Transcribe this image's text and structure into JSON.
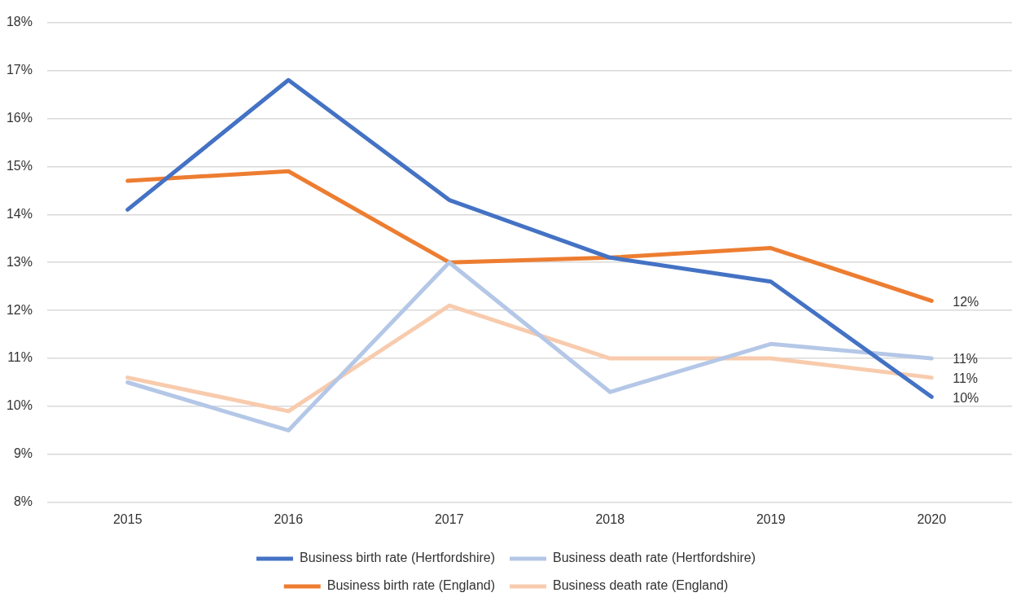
{
  "chart_data": {
    "type": "line",
    "categories": [
      "2015",
      "2016",
      "2017",
      "2018",
      "2019",
      "2020"
    ],
    "ylim": [
      8,
      18
    ],
    "yticks": [
      {
        "value": 8,
        "label": "8%"
      },
      {
        "value": 9,
        "label": "9%"
      },
      {
        "value": 10,
        "label": "10%"
      },
      {
        "value": 11,
        "label": "11%"
      },
      {
        "value": 12,
        "label": "12%"
      },
      {
        "value": 13,
        "label": "13%"
      },
      {
        "value": 14,
        "label": "14%"
      },
      {
        "value": 15,
        "label": "15%"
      },
      {
        "value": 16,
        "label": "16%"
      },
      {
        "value": 17,
        "label": "17%"
      },
      {
        "value": 18,
        "label": "18%"
      }
    ],
    "grid": "y",
    "legend": "bottom",
    "marker": "none",
    "line_style": "solid",
    "series": [
      {
        "name": "Business birth rate (Hertfordshire)",
        "color": "#4472c4",
        "values": [
          14.1,
          16.8,
          14.3,
          13.1,
          12.6,
          10.2
        ],
        "value_labels": [
          null,
          null,
          null,
          null,
          null,
          "10%"
        ]
      },
      {
        "name": "Business death rate (Hertfordshire)",
        "color": "#b4c7e7",
        "values": [
          10.5,
          9.5,
          13.0,
          10.3,
          11.3,
          11.0
        ],
        "value_labels": [
          null,
          null,
          null,
          null,
          null,
          "11%"
        ]
      },
      {
        "name": "Business birth rate (England)",
        "color": "#ed7d31",
        "values": [
          14.7,
          14.9,
          13.0,
          13.1,
          13.3,
          12.2
        ],
        "value_labels": [
          null,
          null,
          null,
          null,
          null,
          "12%"
        ]
      },
      {
        "name": "Business death rate (England)",
        "color": "#f8cbad",
        "values": [
          10.6,
          9.9,
          12.1,
          11.0,
          11.0,
          10.6
        ],
        "value_labels": [
          null,
          null,
          null,
          null,
          null,
          "11%"
        ]
      }
    ]
  }
}
